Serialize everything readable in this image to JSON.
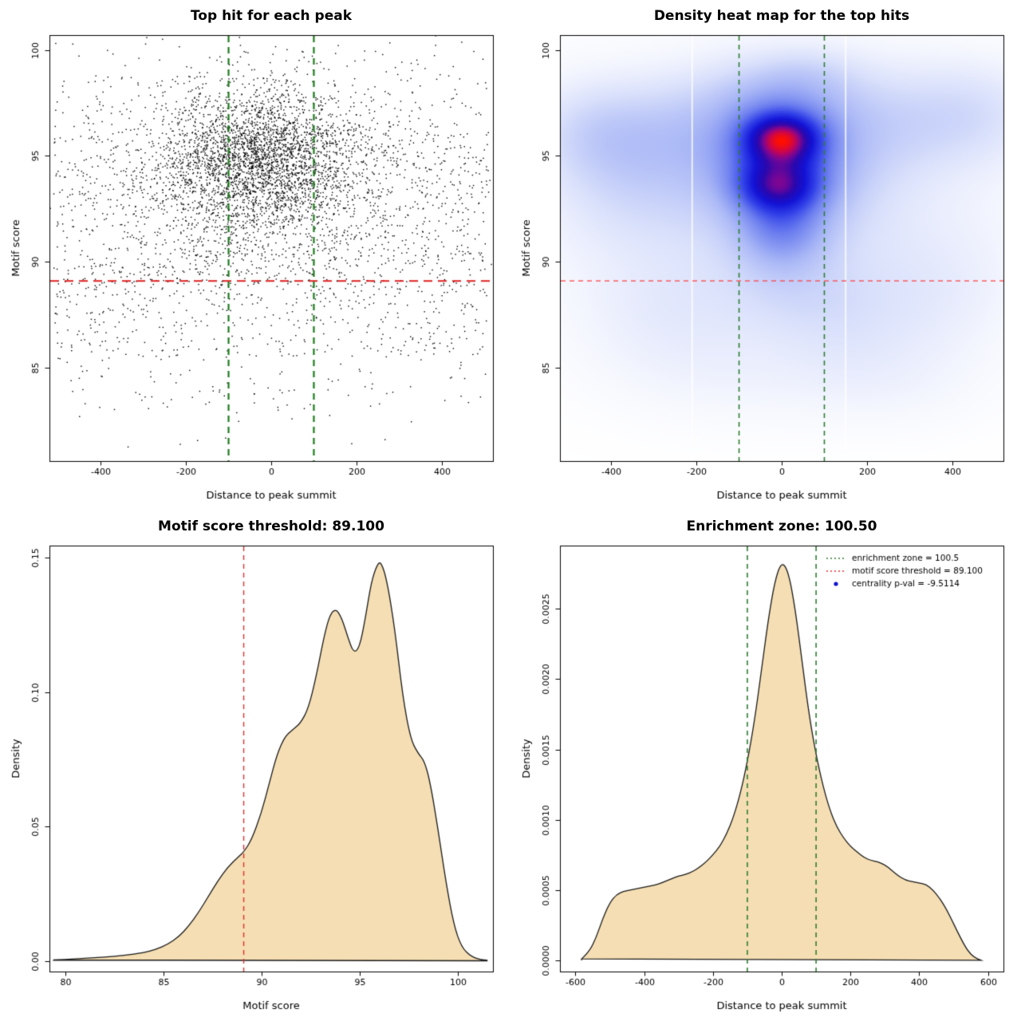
{
  "page": {
    "background": "#ffffff"
  },
  "chart_data": [
    {
      "id": "scatter",
      "type": "scatter",
      "title": "Top hit for each peak",
      "xlabel": "Distance to peak summit",
      "ylabel": "Motif score",
      "xlim": [
        -520,
        520
      ],
      "ylim": [
        80.6,
        100.7
      ],
      "xticks": [
        {
          "v": -400,
          "label": "-400"
        },
        {
          "v": -200,
          "label": "-200"
        },
        {
          "v": 0,
          "label": "0"
        },
        {
          "v": 200,
          "label": "200"
        },
        {
          "v": 400,
          "label": "400"
        }
      ],
      "yticks": [
        {
          "v": 85,
          "label": "85"
        },
        {
          "v": 90,
          "label": "90"
        },
        {
          "v": 95,
          "label": "95"
        },
        {
          "v": 100,
          "label": "100"
        }
      ],
      "point_color": "#000000",
      "threshold_line": {
        "y": 89.1,
        "color": "#e02020",
        "dash": [
          11,
          7
        ],
        "width": 2
      },
      "zone_lines": {
        "xs": [
          -100,
          100
        ],
        "color": "#1e7d1e",
        "dash": [
          8,
          6
        ],
        "width": 2.2
      },
      "points": {
        "seed": 11,
        "clusters": [
          {
            "n": 2300,
            "x": {
              "d": "n",
              "a": -30,
              "b": 105
            },
            "y": {
              "d": "n",
              "a": 95.0,
              "b": 1.65
            }
          },
          {
            "n": 1500,
            "x": {
              "d": "n",
              "a": 0,
              "b": 235
            },
            "y": {
              "d": "n",
              "a": 93.6,
              "b": 2.4
            }
          },
          {
            "n": 1150,
            "x": {
              "d": "u",
              "a": -510,
              "b": 510
            },
            "y": {
              "d": "n",
              "a": 93.5,
              "b": 3.2
            }
          },
          {
            "n": 430,
            "x": {
              "d": "u",
              "a": -510,
              "b": 510
            },
            "y": {
              "d": "u",
              "a": 85.5,
              "b": 90.5
            }
          },
          {
            "n": 120,
            "x": {
              "d": "u",
              "a": -505,
              "b": 505
            },
            "y": {
              "d": "u",
              "a": 83.0,
              "b": 86.5
            }
          },
          {
            "n": 12,
            "x": {
              "d": "u",
              "a": -460,
              "b": 460
            },
            "y": {
              "d": "u",
              "a": 81.0,
              "b": 83.5
            }
          }
        ]
      }
    },
    {
      "id": "heatmap",
      "type": "heatmap",
      "title": "Density heat map for the top hits",
      "xlabel": "Distance to peak summit",
      "ylabel": "Motif score",
      "xlim": [
        -520,
        520
      ],
      "ylim": [
        80.6,
        100.7
      ],
      "xticks": [
        {
          "v": -400,
          "label": "-400"
        },
        {
          "v": -200,
          "label": "-200"
        },
        {
          "v": 0,
          "label": "0"
        },
        {
          "v": 200,
          "label": "200"
        },
        {
          "v": 400,
          "label": "400"
        }
      ],
      "yticks": [
        {
          "v": 85,
          "label": "85"
        },
        {
          "v": 90,
          "label": "90"
        },
        {
          "v": 95,
          "label": "95"
        },
        {
          "v": 100,
          "label": "100"
        }
      ],
      "threshold_line": {
        "y": 89.1,
        "color": "#ff4040",
        "dash": [
          6,
          5
        ],
        "width": 1.2
      },
      "zone_lines": {
        "xs": [
          -100,
          100
        ],
        "color": "#2e7d32",
        "dash": [
          6,
          5
        ],
        "width": 1.6
      },
      "grid": {
        "nx": 170,
        "ny": 170
      },
      "gamma": 0.85,
      "white_gaps": [
        -210,
        150
      ],
      "blobs": [
        {
          "x": 0,
          "y": 95.85,
          "sx": 58,
          "sy": 0.78,
          "w": 1.0
        },
        {
          "x": -10,
          "y": 93.6,
          "sx": 62,
          "sy": 0.8,
          "w": 0.68
        },
        {
          "x": 0,
          "y": 94.8,
          "sx": 90,
          "sy": 1.7,
          "w": 0.52
        },
        {
          "x": 0,
          "y": 91.6,
          "sx": 70,
          "sy": 1.3,
          "w": 0.38
        },
        {
          "x": 0,
          "y": 94.2,
          "sx": 160,
          "sy": 2.9,
          "w": 0.33
        },
        {
          "x": -260,
          "y": 96.2,
          "sx": 170,
          "sy": 1.7,
          "w": 0.2
        },
        {
          "x": 260,
          "y": 96.6,
          "sx": 170,
          "sy": 1.8,
          "w": 0.18
        },
        {
          "x": 460,
          "y": 97.2,
          "sx": 110,
          "sy": 1.6,
          "w": 0.13
        },
        {
          "x": -360,
          "y": 93.6,
          "sx": 130,
          "sy": 2.2,
          "w": 0.16
        },
        {
          "x": -450,
          "y": 96.2,
          "sx": 100,
          "sy": 1.6,
          "w": 0.13
        },
        {
          "x": -10,
          "y": 97.8,
          "sx": 120,
          "sy": 1.2,
          "w": 0.18
        },
        {
          "x": 60,
          "y": 99.0,
          "sx": 80,
          "sy": 0.8,
          "w": 0.08
        },
        {
          "x": -260,
          "y": 87.6,
          "sx": 150,
          "sy": 2.0,
          "w": 0.11
        },
        {
          "x": 150,
          "y": 87.2,
          "sx": 120,
          "sy": 1.9,
          "w": 0.11
        },
        {
          "x": 360,
          "y": 88.6,
          "sx": 130,
          "sy": 2.4,
          "w": 0.1
        },
        {
          "x": 20,
          "y": 88.6,
          "sx": 110,
          "sy": 1.5,
          "w": 0.1
        },
        {
          "x": -100,
          "y": 84.6,
          "sx": 200,
          "sy": 1.6,
          "w": 0.06
        },
        {
          "x": 260,
          "y": 84.2,
          "sx": 150,
          "sy": 1.5,
          "w": 0.05
        },
        {
          "x": 0,
          "y": 93.2,
          "sx": 420,
          "sy": 4.5,
          "w": 0.11
        }
      ],
      "colormap": [
        {
          "t": 0.0,
          "c": "#ffffff"
        },
        {
          "t": 0.06,
          "c": "#f4f6fe"
        },
        {
          "t": 0.16,
          "c": "#d9e0fb"
        },
        {
          "t": 0.3,
          "c": "#a9b7f6"
        },
        {
          "t": 0.45,
          "c": "#6d7fef"
        },
        {
          "t": 0.58,
          "c": "#3140e8"
        },
        {
          "t": 0.7,
          "c": "#1212d6"
        },
        {
          "t": 0.8,
          "c": "#2a07ad"
        },
        {
          "t": 0.87,
          "c": "#7a0694"
        },
        {
          "t": 0.93,
          "c": "#c40455"
        },
        {
          "t": 1.0,
          "c": "#ff0f00"
        }
      ]
    },
    {
      "id": "score_density",
      "type": "density",
      "title": "Motif score threshold: 89.100",
      "xlabel": "Motif score",
      "ylabel": "Density",
      "xlim": [
        79.2,
        101.8
      ],
      "ylim": [
        -0.004,
        0.1545
      ],
      "xticks": [
        {
          "v": 80,
          "label": "80"
        },
        {
          "v": 85,
          "label": "85"
        },
        {
          "v": 90,
          "label": "90"
        },
        {
          "v": 95,
          "label": "95"
        },
        {
          "v": 100,
          "label": "100"
        }
      ],
      "yticks": [
        {
          "v": 0,
          "label": "0.00"
        },
        {
          "v": 0.05,
          "label": "0.05"
        },
        {
          "v": 0.1,
          "label": "0.10"
        },
        {
          "v": 0.15,
          "label": "0.15"
        }
      ],
      "fill": "#f5deb3",
      "stroke": "#1a1a1a",
      "vlines": [
        {
          "x": 89.1,
          "color": "#e03030",
          "dash": [
            6,
            5
          ],
          "width": 1.4
        }
      ],
      "curve": [
        [
          79.4,
          0.0003
        ],
        [
          80,
          0.0005
        ],
        [
          81,
          0.0009
        ],
        [
          82,
          0.0014
        ],
        [
          83,
          0.002
        ],
        [
          84,
          0.003
        ],
        [
          84.6,
          0.0042
        ],
        [
          85.2,
          0.006
        ],
        [
          85.8,
          0.009
        ],
        [
          86.3,
          0.013
        ],
        [
          86.8,
          0.018
        ],
        [
          87.3,
          0.024
        ],
        [
          87.8,
          0.03
        ],
        [
          88.3,
          0.035
        ],
        [
          88.8,
          0.0385
        ],
        [
          89.1,
          0.0405
        ],
        [
          89.5,
          0.045
        ],
        [
          90,
          0.055
        ],
        [
          90.4,
          0.066
        ],
        [
          90.8,
          0.077
        ],
        [
          91.2,
          0.0835
        ],
        [
          91.6,
          0.086
        ],
        [
          92,
          0.0885
        ],
        [
          92.4,
          0.094
        ],
        [
          92.8,
          0.106
        ],
        [
          93.2,
          0.121
        ],
        [
          93.5,
          0.129
        ],
        [
          93.8,
          0.131
        ],
        [
          94.1,
          0.1275
        ],
        [
          94.4,
          0.1205
        ],
        [
          94.7,
          0.1145
        ],
        [
          95,
          0.1165
        ],
        [
          95.3,
          0.1275
        ],
        [
          95.6,
          0.141
        ],
        [
          95.9,
          0.1475
        ],
        [
          96.1,
          0.1485
        ],
        [
          96.4,
          0.1415
        ],
        [
          96.8,
          0.1235
        ],
        [
          97.2,
          0.0985
        ],
        [
          97.6,
          0.0825
        ],
        [
          98,
          0.077
        ],
        [
          98.3,
          0.0745
        ],
        [
          98.6,
          0.0665
        ],
        [
          99,
          0.049
        ],
        [
          99.4,
          0.0295
        ],
        [
          99.8,
          0.0135
        ],
        [
          100.2,
          0.005
        ],
        [
          100.7,
          0.0015
        ],
        [
          101.2,
          0.0004
        ],
        [
          101.5,
          0.0002
        ]
      ]
    },
    {
      "id": "dist_density",
      "type": "density",
      "title": "Enrichment zone: 100.50",
      "xlabel": "Distance to peak summit",
      "ylabel": "Density",
      "xlim": [
        -645,
        645
      ],
      "ylim": [
        -8e-05,
        0.00295
      ],
      "xticks": [
        {
          "v": -600,
          "label": "-600"
        },
        {
          "v": -400,
          "label": "-400"
        },
        {
          "v": -200,
          "label": "-200"
        },
        {
          "v": 0,
          "label": "0"
        },
        {
          "v": 200,
          "label": "200"
        },
        {
          "v": 400,
          "label": "400"
        },
        {
          "v": 600,
          "label": "600"
        }
      ],
      "yticks": [
        {
          "v": 0,
          "label": "0.0000"
        },
        {
          "v": 0.0005,
          "label": "0.0005"
        },
        {
          "v": 0.001,
          "label": "0.0010"
        },
        {
          "v": 0.0015,
          "label": "0.0015"
        },
        {
          "v": 0.002,
          "label": "0.0020"
        },
        {
          "v": 0.0025,
          "label": "0.0025"
        }
      ],
      "fill": "#f5deb3",
      "stroke": "#1a1a1a",
      "vlines": [
        {
          "x": -100,
          "color": "#2e7d32",
          "dash": [
            6,
            5
          ],
          "width": 1.6
        },
        {
          "x": 100,
          "color": "#2e7d32",
          "dash": [
            6,
            5
          ],
          "width": 1.6
        }
      ],
      "legend": {
        "items": [
          {
            "label": "enrichment zone = 100.5",
            "color": "#2e7d32",
            "type": "dotted-line"
          },
          {
            "label": "motif score threshold = 89.100",
            "color": "#e03030",
            "type": "dotted-line"
          },
          {
            "label": "centrality p-val = -9.5114",
            "color": "#1111cc",
            "type": "point"
          }
        ]
      },
      "curve": [
        [
          -582,
          1e-05
        ],
        [
          -560,
          6e-05
        ],
        [
          -540,
          0.00016
        ],
        [
          -520,
          0.0003
        ],
        [
          -500,
          0.00041
        ],
        [
          -480,
          0.00047
        ],
        [
          -460,
          0.00049
        ],
        [
          -440,
          0.0005
        ],
        [
          -420,
          0.00051
        ],
        [
          -400,
          0.00052
        ],
        [
          -380,
          0.00053
        ],
        [
          -360,
          0.00054
        ],
        [
          -340,
          0.00056
        ],
        [
          -320,
          0.00058
        ],
        [
          -300,
          0.0006
        ],
        [
          -280,
          0.00061
        ],
        [
          -260,
          0.00063
        ],
        [
          -240,
          0.00066
        ],
        [
          -220,
          0.0007
        ],
        [
          -200,
          0.00075
        ],
        [
          -180,
          0.00081
        ],
        [
          -160,
          0.0009
        ],
        [
          -140,
          0.00102
        ],
        [
          -120,
          0.00119
        ],
        [
          -100,
          0.00141
        ],
        [
          -80,
          0.00169
        ],
        [
          -60,
          0.00204
        ],
        [
          -40,
          0.00241
        ],
        [
          -20,
          0.0027
        ],
        [
          0,
          0.00284
        ],
        [
          20,
          0.00276
        ],
        [
          40,
          0.00249
        ],
        [
          60,
          0.00211
        ],
        [
          80,
          0.00174
        ],
        [
          100,
          0.00146
        ],
        [
          120,
          0.00124
        ],
        [
          140,
          0.00107
        ],
        [
          160,
          0.00095
        ],
        [
          180,
          0.00087
        ],
        [
          200,
          0.00081
        ],
        [
          220,
          0.00077
        ],
        [
          240,
          0.00073
        ],
        [
          260,
          0.00071
        ],
        [
          280,
          0.0007
        ],
        [
          300,
          0.00068
        ],
        [
          320,
          0.00064
        ],
        [
          340,
          0.0006
        ],
        [
          360,
          0.00057
        ],
        [
          380,
          0.00056
        ],
        [
          400,
          0.00055
        ],
        [
          420,
          0.00054
        ],
        [
          440,
          0.0005
        ],
        [
          460,
          0.00044
        ],
        [
          480,
          0.00036
        ],
        [
          500,
          0.00026
        ],
        [
          520,
          0.00016
        ],
        [
          540,
          7e-05
        ],
        [
          560,
          2e-05
        ],
        [
          580,
          0
        ]
      ]
    }
  ]
}
